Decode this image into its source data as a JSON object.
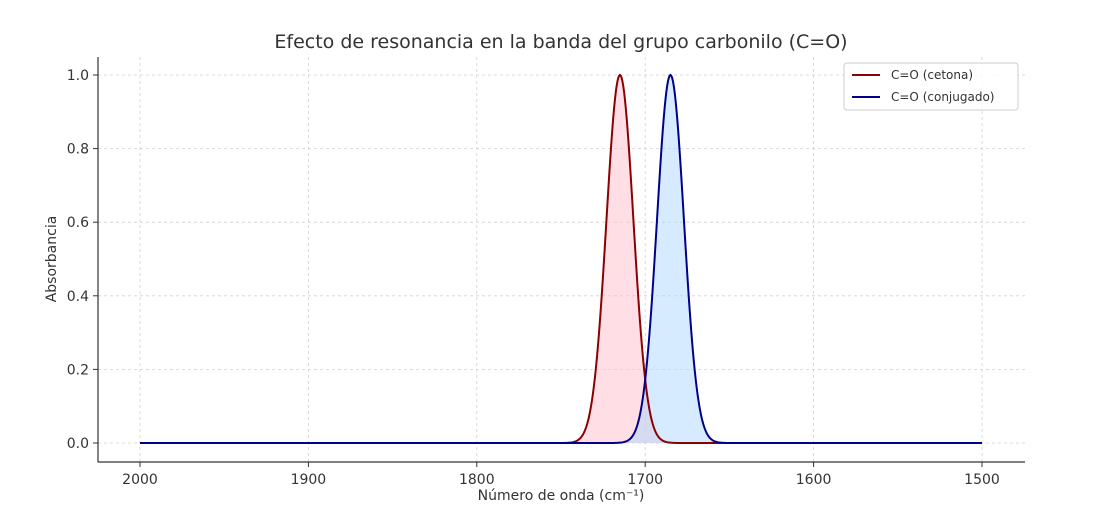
{
  "chart_data": {
    "type": "line",
    "title": "Efecto de resonancia en la banda del grupo carbonilo (C=O)",
    "xlabel": "Número de onda (cm⁻¹)",
    "ylabel": "Absorbancia",
    "xlim": [
      2025,
      1475
    ],
    "ylim": [
      -0.05,
      1.05
    ],
    "x_inverted": true,
    "xticks": [
      2000,
      1900,
      1800,
      1700,
      1600,
      1500
    ],
    "xtick_labels": [
      "2000",
      "1900",
      "1800",
      "1700",
      "1600",
      "1500"
    ],
    "yticks": [
      0.0,
      0.2,
      0.4,
      0.6,
      0.8,
      1.0
    ],
    "ytick_labels": [
      "0.0",
      "0.2",
      "0.4",
      "0.6",
      "0.8",
      "1.0"
    ],
    "grid": true,
    "legend_position": "upper right",
    "x_range": [
      2000,
      1500
    ],
    "series": [
      {
        "name": "C=O (cetona)",
        "shape": "gaussian",
        "center": 1715,
        "sigma": 8,
        "amplitude": 1.0,
        "color": "#8b0000",
        "fill": "#ffc0cb",
        "fill_alpha": 0.5
      },
      {
        "name": "C=O (conjugado)",
        "shape": "gaussian",
        "center": 1685,
        "sigma": 8,
        "amplitude": 1.0,
        "color": "#00008b",
        "fill": "#add8ff",
        "fill_alpha": 0.5
      }
    ]
  }
}
